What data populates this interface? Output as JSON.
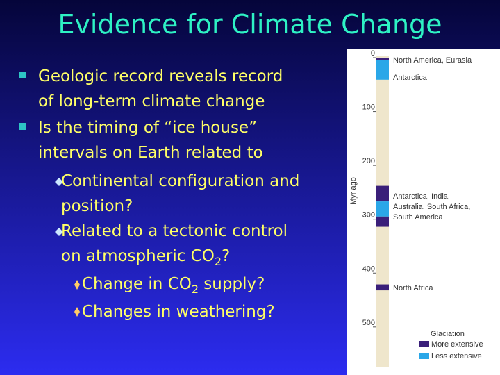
{
  "title": "Evidence for Climate Change",
  "bullets": [
    {
      "lines": [
        [
          "Geologic record reveals record"
        ],
        [
          "of long-term climate change"
        ]
      ]
    },
    {
      "lines": [
        [
          "Is the timing of “ice house”"
        ],
        [
          "intervals on Earth related to"
        ]
      ],
      "items": [
        {
          "lines": [
            [
              "Continental configuration and"
            ],
            [
              "position?"
            ]
          ]
        },
        {
          "lines": [
            [
              "Related to a tectonic control"
            ],
            [
              "on atmospheric CO",
              "2",
              "?"
            ]
          ],
          "items": [
            {
              "lines": [
                [
                  "Change in CO",
                  "2",
                  " supply?"
                ]
              ]
            },
            {
              "lines": [
                [
                  "Changes in weathering?"
                ]
              ]
            }
          ]
        }
      ]
    }
  ],
  "figure": {
    "axis_label": "Myr ago",
    "ylim": [
      0,
      575
    ],
    "yticks": [
      0,
      100,
      200,
      300,
      400,
      500
    ],
    "column_color": "#efe6cc",
    "intervals": [
      {
        "start": 0,
        "end": 5,
        "color": "#3a1f7a"
      },
      {
        "start": 5,
        "end": 41,
        "color": "#2aa7e8"
      },
      {
        "start": 238,
        "end": 267,
        "color": "#3a1f7a"
      },
      {
        "start": 267,
        "end": 295,
        "color": "#2aa7e8"
      },
      {
        "start": 295,
        "end": 314,
        "color": "#3a1f7a"
      },
      {
        "start": 421,
        "end": 432,
        "color": "#3a1f7a"
      }
    ],
    "regions": [
      {
        "lines": [
          "North America, Eurasia"
        ]
      },
      {
        "lines": [
          "Antarctica"
        ]
      },
      {
        "lines": [
          "Antarctica, India,",
          "Australia, South Africa,",
          "South America"
        ]
      },
      {
        "lines": [
          "North Africa"
        ]
      }
    ],
    "legend": {
      "title": "Glaciation",
      "items": [
        {
          "label": "More extensive",
          "color": "#3a1f7a"
        },
        {
          "label": "Less extensive",
          "color": "#2aa7e8"
        }
      ]
    }
  }
}
